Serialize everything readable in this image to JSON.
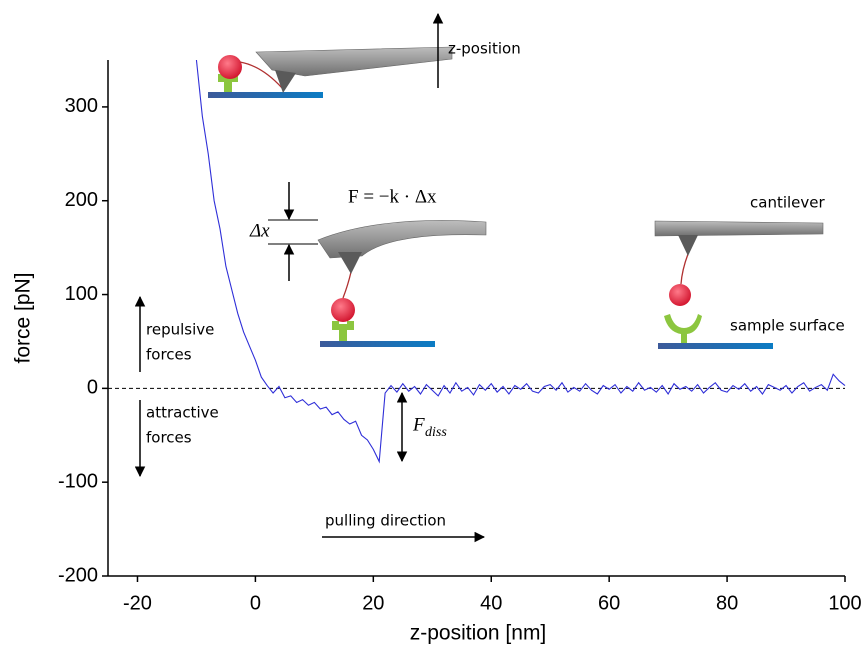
{
  "chart_data": {
    "type": "line",
    "xlabel": "z-position [nm]",
    "ylabel": "force [pN]",
    "xlim": [
      -25,
      100
    ],
    "ylim": [
      -200,
      350
    ],
    "xticks": [
      -20,
      0,
      20,
      40,
      60,
      80,
      100
    ],
    "yticks": [
      -200,
      -100,
      0,
      100,
      200,
      300
    ],
    "grid": false,
    "series": [
      {
        "color": "#2f2fd8",
        "x": [
          -10,
          -9,
          -8,
          -7,
          -6,
          -5,
          -4,
          -3,
          -2,
          -1,
          0,
          1,
          2,
          3,
          4,
          5,
          6,
          7,
          8,
          9,
          10,
          11,
          12,
          13,
          14,
          15,
          16,
          17,
          18,
          19,
          20,
          21,
          22,
          23,
          24,
          25,
          26,
          27,
          28,
          29,
          30,
          31,
          32,
          33,
          34,
          35,
          36,
          37,
          38,
          39,
          40,
          41,
          42,
          43,
          44,
          45,
          46,
          47,
          48,
          49,
          50,
          51,
          52,
          53,
          54,
          55,
          56,
          57,
          58,
          59,
          60,
          61,
          62,
          63,
          64,
          65,
          66,
          67,
          68,
          69,
          70,
          71,
          72,
          73,
          74,
          75,
          76,
          77,
          78,
          79,
          80,
          81,
          82,
          83,
          84,
          85,
          86,
          87,
          88,
          89,
          90,
          91,
          92,
          93,
          94,
          95,
          96,
          97,
          98,
          99,
          100
        ],
        "values": [
          350,
          290,
          250,
          200,
          170,
          130,
          105,
          80,
          60,
          45,
          30,
          12,
          3,
          -5,
          2,
          -10,
          -8,
          -15,
          -12,
          -18,
          -15,
          -22,
          -20,
          -28,
          -25,
          -33,
          -38,
          -35,
          -50,
          -55,
          -65,
          -78,
          -5,
          3,
          -4,
          5,
          -3,
          2,
          -6,
          4,
          -2,
          -8,
          3,
          -5,
          6,
          -3,
          1,
          -7,
          4,
          -2,
          5,
          -4,
          2,
          -6,
          3,
          -1,
          5,
          -3,
          -5,
          2,
          4,
          -2,
          6,
          -4,
          1,
          -3,
          5,
          -2,
          -6,
          3,
          -1,
          4,
          -5,
          2,
          -3,
          6,
          -2,
          1,
          -4,
          3,
          -6,
          5,
          -1,
          2,
          -3,
          4,
          -5,
          1,
          6,
          -2,
          -4,
          3,
          -1,
          5,
          -3,
          2,
          -6,
          4,
          1,
          -2,
          3,
          -5,
          2,
          6,
          -3,
          1,
          4,
          -2,
          15,
          8,
          3
        ]
      }
    ]
  },
  "annotations": {
    "z_position": "z-position",
    "cantilever": "cantilever",
    "sample_surface": "sample surface",
    "repulsive": [
      "repulsive",
      "forces"
    ],
    "attractive": [
      "attractive",
      "forces"
    ],
    "pulling": "pulling direction",
    "hooke": "F = −k · Δx",
    "delta_x": "Δx",
    "f_diss": "F",
    "f_diss_sub": "diss"
  }
}
